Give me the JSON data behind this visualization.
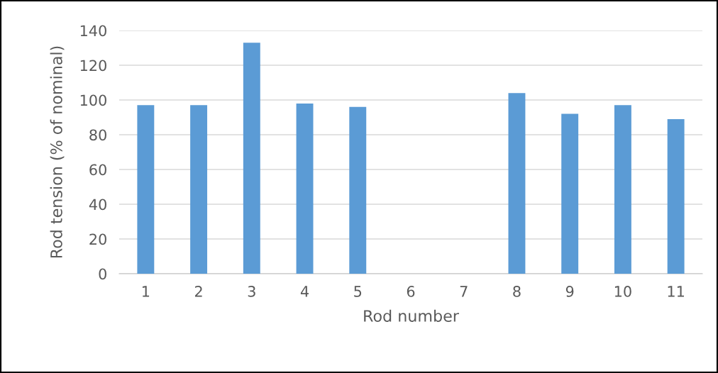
{
  "chart_data": {
    "type": "bar",
    "xlabel": "Rod number",
    "ylabel": "Rod tension (% of nominal)",
    "categories": [
      "1",
      "2",
      "3",
      "4",
      "5",
      "6",
      "7",
      "8",
      "9",
      "10",
      "11"
    ],
    "values": [
      97,
      97,
      133,
      98,
      96,
      null,
      null,
      104,
      92,
      97,
      89
    ],
    "color": "#5b9bd5",
    "ylim": [
      0,
      140
    ],
    "yticks": [
      0,
      20,
      40,
      60,
      80,
      100,
      120,
      140
    ],
    "grid": "y"
  }
}
